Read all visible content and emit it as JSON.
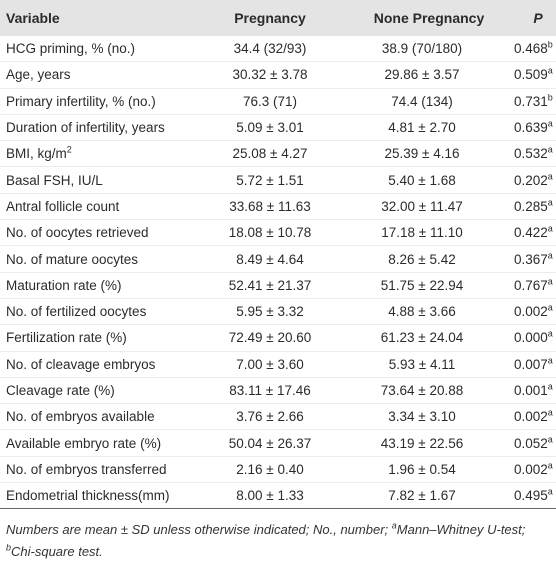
{
  "table": {
    "header": [
      "Variable",
      "Pregnancy",
      "None Pregnancy",
      "P"
    ],
    "rows": [
      [
        "HCG priming, % (no.)",
        "34.4 (32/93)",
        "38.9 (70/180)",
        {
          "text": "0.468",
          "sup": "b"
        }
      ],
      [
        "Age, years",
        "30.32 ± 3.78",
        "29.86 ± 3.57",
        {
          "text": "0.509",
          "sup": "a"
        }
      ],
      [
        "Primary infertility, % (no.)",
        "76.3 (71)",
        "74.4 (134)",
        {
          "text": "0.731",
          "sup": "b"
        }
      ],
      [
        "Duration of infertility, years",
        "5.09 ± 3.01",
        "4.81 ± 2.70",
        {
          "text": "0.639",
          "sup": "a"
        }
      ],
      [
        {
          "text": "BMI, kg/m",
          "sup": "2"
        },
        "25.08 ± 4.27",
        "25.39 ± 4.16",
        {
          "text": "0.532",
          "sup": "a"
        }
      ],
      [
        "Basal FSH, IU/L",
        "5.72 ± 1.51",
        "5.40 ± 1.68",
        {
          "text": "0.202",
          "sup": "a"
        }
      ],
      [
        "Antral follicle count",
        "33.68 ± 11.63",
        "32.00 ± 11.47",
        {
          "text": "0.285",
          "sup": "a"
        }
      ],
      [
        "No. of oocytes retrieved",
        "18.08 ± 10.78",
        "17.18 ± 11.10",
        {
          "text": "0.422",
          "sup": "a"
        }
      ],
      [
        "No. of mature oocytes",
        "8.49 ± 4.64",
        "8.26 ± 5.42",
        {
          "text": "0.367",
          "sup": "a"
        }
      ],
      [
        "Maturation rate (%)",
        "52.41 ± 21.37",
        "51.75 ± 22.94",
        {
          "text": "0.767",
          "sup": "a"
        }
      ],
      [
        "No. of fertilized oocytes",
        "5.95 ± 3.32",
        "4.88 ± 3.66",
        {
          "text": "0.002",
          "sup": "a"
        }
      ],
      [
        "Fertilization rate (%)",
        "72.49 ± 20.60",
        "61.23 ± 24.04",
        {
          "text": "0.000",
          "sup": "a"
        }
      ],
      [
        "No. of cleavage embryos",
        "7.00 ± 3.60",
        "5.93 ± 4.11",
        {
          "text": "0.007",
          "sup": "a"
        }
      ],
      [
        "Cleavage rate (%)",
        "83.11 ± 17.46",
        "73.64 ± 20.88",
        {
          "text": "0.001",
          "sup": "a"
        }
      ],
      [
        "No. of embryos available",
        "3.76 ± 2.66",
        "3.34 ± 3.10",
        {
          "text": "0.002",
          "sup": "a"
        }
      ],
      [
        "Available embryo rate (%)",
        "50.04 ± 26.37",
        "43.19 ± 22.56",
        {
          "text": "0.052",
          "sup": "a"
        }
      ],
      [
        "No. of embryos transferred",
        "2.16 ± 0.40",
        "1.96 ± 0.54",
        {
          "text": "0.002",
          "sup": "a"
        }
      ],
      [
        "Endometrial thickness(mm)",
        "8.00 ± 1.33",
        "7.82 ± 1.67",
        {
          "text": "0.495",
          "sup": "a"
        }
      ]
    ]
  },
  "footnote": [
    {
      "text": "Numbers are mean ± SD unless otherwise indicated; No., number; "
    },
    {
      "sup": "a"
    },
    {
      "text": "Mann–Whitney U-test; "
    },
    {
      "sup": "b"
    },
    {
      "text": "Chi-square test."
    }
  ]
}
